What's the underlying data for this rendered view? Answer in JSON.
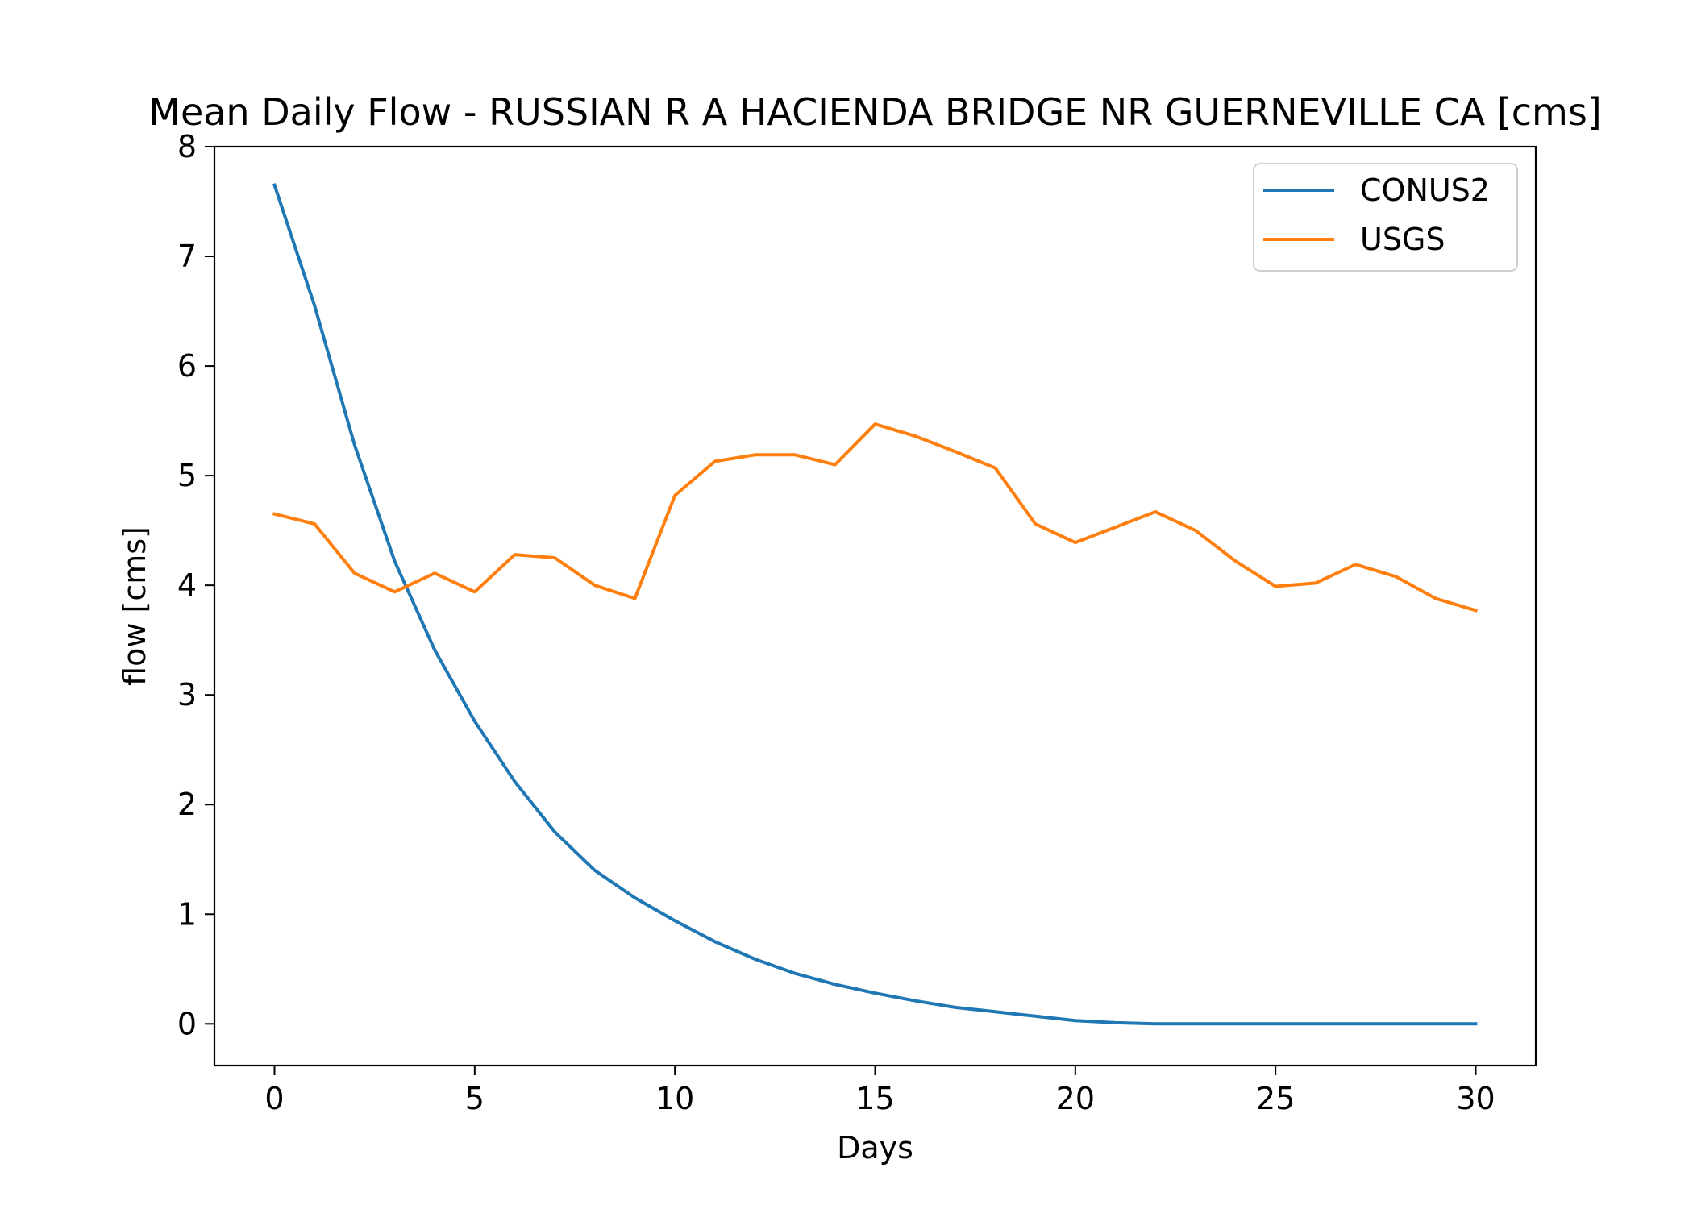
{
  "chart_data": {
    "type": "line",
    "title": "Mean Daily Flow - RUSSIAN R A HACIENDA BRIDGE NR GUERNEVILLE CA [cms]",
    "xlabel": "Days",
    "ylabel": "flow [cms]",
    "xlim": [
      -1.5,
      31.5
    ],
    "ylim": [
      -0.38,
      8
    ],
    "xticks": [
      0,
      5,
      10,
      15,
      20,
      25,
      30
    ],
    "yticks": [
      0,
      1,
      2,
      3,
      4,
      5,
      6,
      7,
      8
    ],
    "grid": false,
    "legend_position": "top-right",
    "x": [
      0,
      1,
      2,
      3,
      4,
      5,
      6,
      7,
      8,
      9,
      10,
      11,
      12,
      13,
      14,
      15,
      16,
      17,
      18,
      19,
      20,
      21,
      22,
      23,
      24,
      25,
      26,
      27,
      28,
      29,
      30
    ],
    "series": [
      {
        "name": "CONUS2",
        "color": "#1f77b4",
        "values": [
          7.65,
          6.55,
          5.28,
          4.22,
          3.41,
          2.76,
          2.21,
          1.75,
          1.4,
          1.15,
          0.94,
          0.75,
          0.59,
          0.46,
          0.36,
          0.28,
          0.21,
          0.15,
          0.11,
          0.07,
          0.03,
          0.01,
          0.0,
          0.0,
          0.0,
          0.0,
          0.0,
          0.0,
          0.0,
          0.0,
          0.0
        ]
      },
      {
        "name": "USGS",
        "color": "#ff7f0e",
        "values": [
          4.65,
          4.56,
          4.11,
          3.94,
          4.11,
          3.94,
          4.28,
          4.25,
          4.0,
          3.88,
          4.82,
          5.13,
          5.19,
          5.19,
          5.1,
          5.47,
          5.36,
          5.22,
          5.07,
          4.56,
          4.39,
          4.53,
          4.67,
          4.5,
          4.22,
          3.99,
          4.02,
          4.19,
          4.08,
          3.88,
          3.77
        ]
      }
    ]
  }
}
